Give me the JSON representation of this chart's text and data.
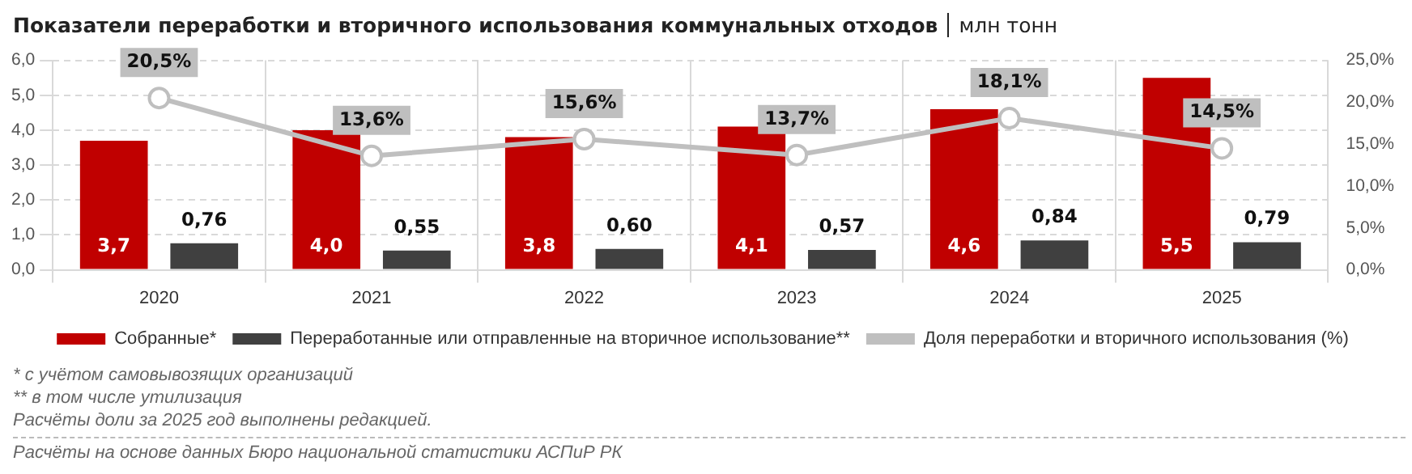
{
  "chart_data": {
    "type": "bar",
    "title": "Показатели переработки и вторичного использования коммунальных отходов",
    "subtitle": "млн тонн",
    "categories": [
      "2020",
      "2021",
      "2022",
      "2023",
      "2024",
      "2025"
    ],
    "series": [
      {
        "name": "Собранные*",
        "color": "#c00000",
        "values": [
          3.7,
          4.0,
          3.8,
          4.1,
          4.6,
          5.5
        ],
        "value_labels": [
          "3,7",
          "4,0",
          "3,8",
          "4,1",
          "4,6",
          "5,5"
        ]
      },
      {
        "name": "Переработанные или отправленные на вторичное использование**",
        "color": "#404040",
        "values": [
          0.76,
          0.55,
          0.6,
          0.57,
          0.84,
          0.79
        ],
        "value_labels": [
          "0,76",
          "0,55",
          "0,60",
          "0,57",
          "0,84",
          "0,79"
        ]
      },
      {
        "name": "Доля переработки и вторичного использования (%)",
        "type": "line",
        "axis": "y2",
        "color": "#bfbfbf",
        "marker": "circle",
        "values": [
          20.5,
          13.6,
          15.6,
          13.7,
          18.1,
          14.5
        ],
        "value_labels": [
          "20,5%",
          "13,6%",
          "15,6%",
          "13,7%",
          "18,1%",
          "14,5%"
        ]
      }
    ],
    "ylim": [
      0,
      6
    ],
    "yticks": [
      {
        "value": 0,
        "label": "0,0"
      },
      {
        "value": 1,
        "label": "1,0"
      },
      {
        "value": 2,
        "label": "2,0"
      },
      {
        "value": 3,
        "label": "3,0"
      },
      {
        "value": 4,
        "label": "4,0"
      },
      {
        "value": 5,
        "label": "5,0"
      },
      {
        "value": 6,
        "label": "6,0"
      }
    ],
    "y2lim": [
      0,
      25
    ],
    "y2ticks": [
      {
        "value": 0,
        "label": "0,0%"
      },
      {
        "value": 5,
        "label": "5,0%"
      },
      {
        "value": 10,
        "label": "10,0%"
      },
      {
        "value": 15,
        "label": "15,0%"
      },
      {
        "value": 20,
        "label": "20,0%"
      },
      {
        "value": 25,
        "label": "25,0%"
      }
    ],
    "grid": true,
    "legend": "bottom",
    "annotations": [
      "* с учётом самовывозящих организаций",
      "** в том числе утилизация",
      "Расчёты доли за 2025 год выполнены редакцией.",
      "Расчёты на основе данных Бюро национальной статистики АСПиР РК"
    ]
  }
}
